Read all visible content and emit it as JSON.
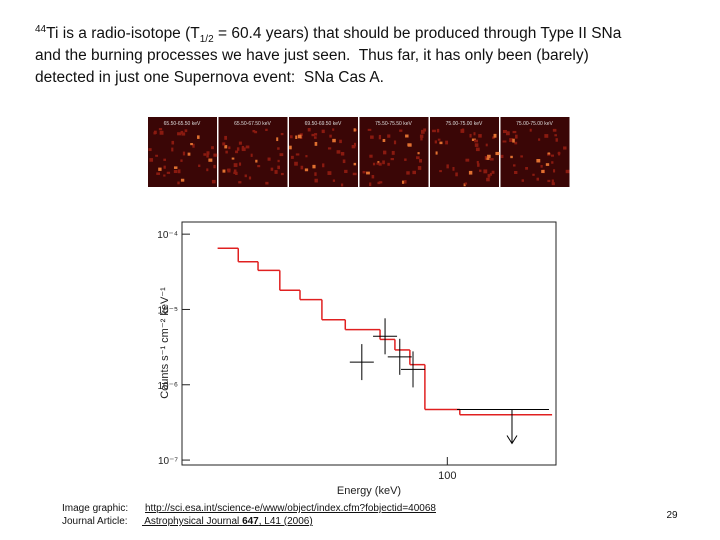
{
  "slide": {
    "intro": {
      "mass": "44",
      "before": "Ti is a radio-isotope (T",
      "subscript": "1/2",
      "after": " = 60.4 years) that should be produced through Type II SNa"
    },
    "line2": "and the burning processes we have just seen.  Thus far, it has only been (barely)",
    "line3": "detected in just one Supernova event:  SNa Cas A.",
    "panels": [
      "65.50-65.50 keV",
      "65.50-67.50 keV",
      "69.50-69.50 keV",
      "75.50-75.50 keV",
      "75.00-75.00 keV",
      "75.00-75.00 keV"
    ],
    "footer": {
      "image_label": "Image graphic:",
      "image_url": "http://sci.esa.int/science-e/www/object/index.cfm?fobjectid=40068",
      "article_label": "Journal Article:",
      "article_before": " Astrophysical Journal ",
      "article_volume": "647",
      "article_after": ", L41 (2006)"
    },
    "page_number": "29"
  },
  "chart_data": {
    "type": "step",
    "xlabel": "Energy (keV)",
    "ylabel": "Counts s⁻¹ cm⁻² keV⁻¹",
    "xlog": true,
    "ylog": true,
    "xlim": [
      58,
      125
    ],
    "ylim": [
      8.6e-08,
      0.000145
    ],
    "xticks": [
      100
    ],
    "yticks": [
      {
        "value": 0.0001,
        "label": "10⁻⁴"
      },
      {
        "value": 1e-05,
        "label": "10⁻⁵"
      },
      {
        "value": 1e-06,
        "label": "10⁻⁶"
      },
      {
        "value": 1e-07,
        "label": "10⁻⁷"
      }
    ],
    "series": [
      {
        "color": "#e02020",
        "bins": [
          62.4,
          65.1,
          67.8,
          70.9,
          73.9,
          77.3,
          81.1,
          87.1,
          89.8,
          92.6,
          95.5,
          102.6,
          124
        ],
        "values": [
          6.5e-05,
          4.3e-05,
          3.3e-05,
          1.8e-05,
          1.35e-05,
          7.3e-06,
          5.4e-06,
          4e-06,
          2.9e-06,
          1.85e-06,
          4.7e-07,
          4e-07
        ]
      },
      {
        "color": "#000000",
        "x": [
          83.9,
          88.0,
          90.7,
          93.2
        ],
        "values": [
          2e-06,
          4.4e-06,
          2.35e-06,
          1.6e-06
        ]
      }
    ],
    "upper_limits": {
      "x": [
        114.2
      ],
      "values": [
        4.7e-07
      ]
    }
  }
}
